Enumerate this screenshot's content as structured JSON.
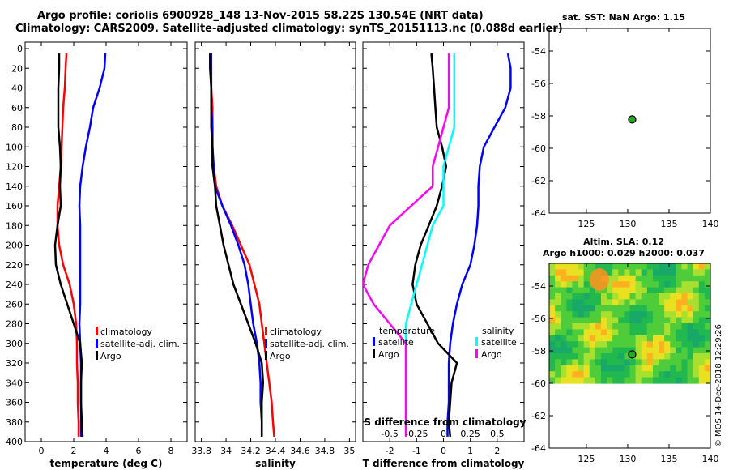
{
  "header": {
    "title_line1": "Argo profile: coriolis 6900928_148 13-Nov-2015 58.22S 130.54E (NRT data)",
    "title_line2": "Climatology: CARS2009. Satellite-adjusted climatology: synTS_20151113.nc (0.088d earlier)"
  },
  "copyright": "©IMOS 14-Dec-2018 12:29:26",
  "colors": {
    "climatology": "#ff0000",
    "satellite": "#0000ff",
    "argo": "#000000",
    "sal_satellite": "#00ffff",
    "sal_argo": "#ff00ff",
    "sla_base": "#22cc22"
  },
  "chart_data": [
    {
      "id": "temperature",
      "type": "line",
      "xlabel": "temperature (deg C)",
      "xlim": [
        -1,
        9
      ],
      "xticks": [
        0,
        2,
        4,
        6,
        8
      ],
      "ylim": [
        0,
        400
      ],
      "yticks": [
        0,
        20,
        40,
        60,
        80,
        100,
        120,
        140,
        160,
        180,
        200,
        220,
        240,
        260,
        280,
        300,
        320,
        340,
        360,
        380,
        400
      ],
      "legend": [
        "climatology",
        "satellite-adj. clim.",
        "Argo"
      ],
      "series": [
        {
          "name": "climatology",
          "color": "#ff0000",
          "x": [
            1.55,
            1.5,
            1.45,
            1.35,
            1.3,
            1.25,
            1.2,
            1.1,
            1.0,
            1.0,
            1.1,
            1.35,
            1.75,
            2.0,
            2.15,
            2.2,
            2.2,
            2.25,
            2.25,
            2.3,
            2.3
          ],
          "y": [
            5,
            20,
            40,
            60,
            80,
            100,
            120,
            140,
            160,
            180,
            200,
            220,
            240,
            260,
            280,
            300,
            320,
            340,
            360,
            380,
            395
          ]
        },
        {
          "name": "satellite-adj. clim.",
          "color": "#0000ff",
          "x": [
            3.95,
            3.9,
            3.6,
            3.2,
            3.0,
            2.75,
            2.55,
            2.4,
            2.35,
            2.4,
            2.4,
            2.4,
            2.4,
            2.4,
            2.35,
            2.4,
            2.45,
            2.45,
            2.45,
            2.45,
            2.45
          ],
          "y": [
            5,
            20,
            40,
            60,
            80,
            100,
            120,
            140,
            160,
            180,
            200,
            220,
            240,
            260,
            280,
            300,
            320,
            340,
            360,
            380,
            395
          ]
        },
        {
          "name": "Argo",
          "color": "#000000",
          "x": [
            1.1,
            1.1,
            1.05,
            1.05,
            1.05,
            1.15,
            1.2,
            1.15,
            1.2,
            1.0,
            0.85,
            0.9,
            1.2,
            1.6,
            2.0,
            2.4,
            2.5,
            2.45,
            2.45,
            2.5,
            2.55
          ],
          "y": [
            5,
            20,
            40,
            60,
            80,
            100,
            120,
            140,
            160,
            180,
            200,
            220,
            240,
            260,
            280,
            300,
            320,
            340,
            360,
            380,
            395
          ]
        }
      ]
    },
    {
      "id": "salinity",
      "type": "line",
      "xlabel": "salinity",
      "xlim": [
        33.75,
        35.05
      ],
      "xticks": [
        33.8,
        34,
        34.2,
        34.4,
        34.6,
        34.8,
        35
      ],
      "xticklabels": [
        "33.8",
        "34",
        "34.2",
        "34.4",
        "34.6",
        "34.8",
        "35"
      ],
      "ylim": [
        0,
        400
      ],
      "legend": [
        "climatology",
        "satellite-adj. clim.",
        "Argo"
      ],
      "series": [
        {
          "name": "climatology",
          "color": "#ff0000",
          "x": [
            33.88,
            33.88,
            33.88,
            33.89,
            33.89,
            33.89,
            33.9,
            33.92,
            33.97,
            34.05,
            34.12,
            34.19,
            34.23,
            34.27,
            34.29,
            34.31,
            34.33,
            34.35,
            34.37,
            34.38,
            34.39
          ],
          "y": [
            5,
            20,
            40,
            60,
            80,
            100,
            120,
            140,
            160,
            180,
            200,
            220,
            240,
            260,
            280,
            300,
            320,
            340,
            360,
            380,
            395
          ]
        },
        {
          "name": "satellite-adj. clim.",
          "color": "#0000ff",
          "x": [
            33.88,
            33.88,
            33.88,
            33.88,
            33.89,
            33.89,
            33.9,
            33.91,
            33.97,
            34.04,
            34.1,
            34.15,
            34.18,
            34.2,
            34.22,
            34.25,
            34.27,
            34.28,
            34.28,
            34.29,
            34.29
          ],
          "y": [
            5,
            20,
            40,
            60,
            80,
            100,
            120,
            140,
            160,
            180,
            200,
            220,
            240,
            260,
            280,
            300,
            320,
            340,
            360,
            380,
            395
          ]
        },
        {
          "name": "Argo",
          "color": "#000000",
          "x": [
            33.87,
            33.87,
            33.88,
            33.88,
            33.88,
            33.89,
            33.89,
            33.91,
            33.92,
            33.95,
            33.98,
            34.02,
            34.06,
            34.12,
            34.18,
            34.24,
            34.29,
            34.3,
            34.29,
            34.29,
            34.29
          ],
          "y": [
            5,
            20,
            40,
            60,
            80,
            100,
            120,
            140,
            160,
            180,
            200,
            220,
            240,
            260,
            280,
            300,
            320,
            340,
            360,
            380,
            395
          ]
        }
      ]
    },
    {
      "id": "difference",
      "type": "line",
      "xlabel": "T difference from climatology",
      "xlim": [
        -3,
        3
      ],
      "xticks": [
        -2,
        -1,
        0,
        1,
        2
      ],
      "top_xlabel": "S difference from climatology",
      "top_xticks": [
        -0.5,
        -0.25,
        0,
        0.25,
        0.5
      ],
      "top_xticklabels": [
        "-0.5",
        "-0.25",
        "0",
        "0.25",
        "0.5"
      ],
      "ylim": [
        0,
        400
      ],
      "legend_temperature": {
        "title": "temperature",
        "items": [
          "satellite",
          "Argo"
        ]
      },
      "legend_salinity": {
        "title": "salinity",
        "items": [
          "satellite",
          "Argo"
        ]
      },
      "series": [
        {
          "name": "T satellite",
          "color": "#0000ff",
          "x": [
            2.4,
            2.5,
            2.5,
            2.3,
            1.9,
            1.5,
            1.35,
            1.3,
            1.3,
            1.25,
            1.15,
            1.0,
            0.7,
            0.5,
            0.35,
            0.25,
            0.2,
            0.2,
            0.2,
            0.15,
            0.15
          ],
          "y": [
            5,
            20,
            40,
            60,
            80,
            100,
            120,
            140,
            160,
            180,
            200,
            220,
            240,
            260,
            280,
            300,
            320,
            340,
            360,
            380,
            395
          ]
        },
        {
          "name": "T Argo",
          "color": "#000000",
          "x": [
            -0.45,
            -0.4,
            -0.35,
            -0.3,
            -0.25,
            -0.05,
            0.1,
            -0.05,
            -0.25,
            -0.55,
            -0.85,
            -1.05,
            -1.15,
            -1.0,
            -0.6,
            -0.2,
            0.5,
            0.3,
            0.25,
            0.2,
            0.25
          ],
          "y": [
            5,
            20,
            40,
            60,
            80,
            100,
            120,
            140,
            160,
            180,
            200,
            220,
            240,
            260,
            280,
            300,
            320,
            340,
            360,
            380,
            395
          ]
        },
        {
          "name": "S satellite",
          "color": "#00ffff",
          "x": [
            0.1,
            0.1,
            0.1,
            0.1,
            0.1,
            0.05,
            0.0,
            0.0,
            0.0,
            -0.1,
            -0.15,
            -0.2,
            -0.25,
            -0.3,
            -0.35,
            -0.35,
            -0.35,
            -0.35,
            -0.35,
            -0.35,
            -0.35
          ],
          "y": [
            5,
            20,
            40,
            60,
            80,
            100,
            120,
            140,
            160,
            180,
            200,
            220,
            240,
            260,
            280,
            300,
            320,
            340,
            360,
            380,
            395
          ]
        },
        {
          "name": "S Argo",
          "color": "#ff00ff",
          "x": [
            0.05,
            0.05,
            0.05,
            0.05,
            0.0,
            -0.05,
            -0.1,
            -0.1,
            -0.3,
            -0.5,
            -0.6,
            -0.7,
            -0.75,
            -0.65,
            -0.5,
            -0.35,
            -0.35,
            -0.35,
            -0.35,
            -0.35,
            -0.35
          ],
          "y": [
            5,
            20,
            40,
            60,
            80,
            100,
            120,
            140,
            160,
            180,
            200,
            220,
            240,
            260,
            280,
            300,
            320,
            340,
            360,
            380,
            395
          ]
        }
      ]
    },
    {
      "id": "sst_map",
      "type": "scatter",
      "title": "sat. SST: NaN Argo: 1.15",
      "xlim": [
        120.5,
        140
      ],
      "ylim": [
        -64,
        -52.6
      ],
      "xticks": [
        125,
        130,
        135,
        140
      ],
      "yticks": [
        -54,
        -56,
        -58,
        -60,
        -62,
        -64
      ],
      "point": {
        "lon": 130.54,
        "lat": -58.22
      }
    },
    {
      "id": "sla_map",
      "type": "heatmap",
      "title_line1": "Altim. SLA: 0.12",
      "title_line2": "Argo h1000: 0.029 h2000: 0.037",
      "xlim": [
        120.5,
        140
      ],
      "ylim": [
        -64,
        -52.6
      ],
      "xticks": [
        125,
        130,
        135,
        140
      ],
      "yticks": [
        -54,
        -56,
        -58,
        -60,
        -62,
        -64
      ],
      "data_ylim": [
        -60,
        -52.6
      ],
      "point": {
        "lon": 130.54,
        "lat": -58.22
      }
    }
  ]
}
